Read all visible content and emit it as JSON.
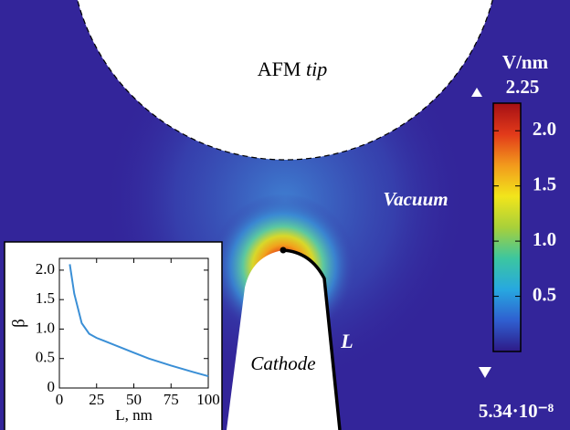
{
  "field_map": {
    "tip_label": "AFM",
    "tip_label_italic": "tip",
    "vacuum_label": "Vacuum",
    "cathode_label": "Cathode",
    "length_label": "L",
    "colorbar": {
      "unit": "V/nm",
      "max": 2.25,
      "min": {
        "value": 5.34e-08,
        "label": "5.34·10⁻⁸"
      },
      "ticks": [
        {
          "value": 2,
          "label": "2.0"
        },
        1.5,
        {
          "value": 1,
          "label": "1.0"
        },
        0.5
      ],
      "colors": [
        "#2e1a87",
        "#2f5fd0",
        "#27a8e0",
        "#3cc6a0",
        "#a8d03a",
        "#f2e51b",
        "#f29a1c",
        "#e23a1a",
        "#a50f15"
      ]
    }
  },
  "chart_data": {
    "type": "line",
    "xlabel": "L, nm",
    "ylabel": "β",
    "x": [
      7,
      10,
      15,
      20,
      25,
      30,
      40,
      50,
      60,
      75,
      90,
      100
    ],
    "series": [
      {
        "name": "β",
        "color": "#3a8fd6",
        "values": [
          2.1,
          1.6,
          1.1,
          0.92,
          0.85,
          0.8,
          0.7,
          0.6,
          0.5,
          0.38,
          0.27,
          0.2
        ]
      }
    ],
    "xlim": [
      0,
      100
    ],
    "ylim": [
      0,
      2.2
    ],
    "xticks": [
      0,
      25,
      50,
      75,
      100
    ],
    "yticks": [
      0,
      0.5,
      {
        "value": 1,
        "label": "1.0"
      },
      1.5,
      {
        "value": 2,
        "label": "2.0"
      }
    ]
  }
}
